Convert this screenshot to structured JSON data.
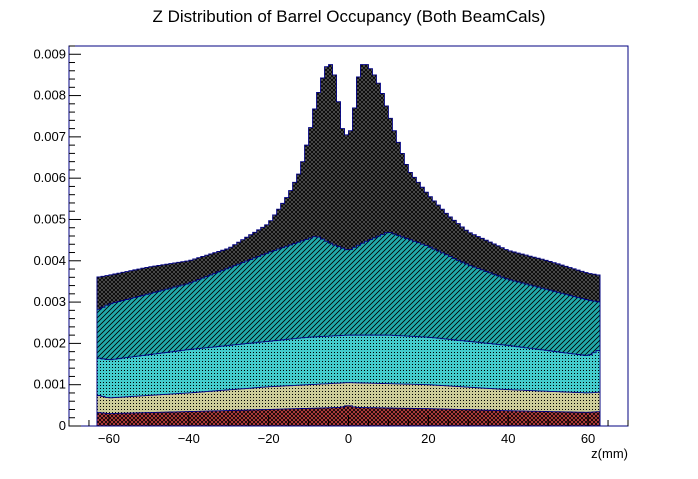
{
  "chart_data": {
    "type": "area",
    "title": "Z Distribution of Barrel Occupancy (Both BeamCals)",
    "xlabel": "z(mm)",
    "ylabel": "",
    "xlim": [
      -70,
      70
    ],
    "ylim": [
      0,
      0.0092
    ],
    "x_range_data": [
      -63,
      63
    ],
    "x_ticks": [
      -60,
      -40,
      -20,
      0,
      20,
      40,
      60
    ],
    "x_tick_labels": [
      "−60",
      "−40",
      "−20",
      "0",
      "20",
      "40",
      "60"
    ],
    "y_ticks": [
      0,
      0.001,
      0.002,
      0.003,
      0.004,
      0.005,
      0.006,
      0.007,
      0.008,
      0.009
    ],
    "y_tick_labels": [
      "0",
      "0.001",
      "0.002",
      "0.003",
      "0.004",
      "0.005",
      "0.006",
      "0.007",
      "0.008",
      "0.009"
    ],
    "grid": false,
    "legend": "none",
    "stacked": true,
    "series": [
      {
        "fill": "#cc4444",
        "hatch": "cross",
        "stroke": "#000080",
        "points": [
          [
            -63,
            0.00033
          ],
          [
            -60,
            0.0003
          ],
          [
            -40,
            0.00035
          ],
          [
            -20,
            0.0004
          ],
          [
            -2,
            0.00045
          ],
          [
            0,
            0.0005
          ],
          [
            2,
            0.00045
          ],
          [
            20,
            0.00042
          ],
          [
            40,
            0.00037
          ],
          [
            60,
            0.00033
          ],
          [
            63,
            0.00035
          ]
        ]
      },
      {
        "fill": "#cccc99",
        "hatch": "dots",
        "stroke": "#000080",
        "points": [
          [
            -63,
            0.00075
          ],
          [
            -60,
            0.00068
          ],
          [
            -40,
            0.0008
          ],
          [
            -20,
            0.00095
          ],
          [
            0,
            0.00105
          ],
          [
            20,
            0.001
          ],
          [
            40,
            0.00088
          ],
          [
            60,
            0.0008
          ],
          [
            63,
            0.00082
          ]
        ]
      },
      {
        "fill": "#44cccc",
        "hatch": "dots",
        "stroke": "#000080",
        "points": [
          [
            -63,
            0.00165
          ],
          [
            -60,
            0.0016
          ],
          [
            -40,
            0.00185
          ],
          [
            -20,
            0.00205
          ],
          [
            -10,
            0.00215
          ],
          [
            0,
            0.0022
          ],
          [
            10,
            0.0022
          ],
          [
            20,
            0.00215
          ],
          [
            40,
            0.00195
          ],
          [
            60,
            0.0017
          ],
          [
            63,
            0.00185
          ]
        ]
      },
      {
        "fill": "#22aaaa",
        "hatch": "diag",
        "stroke": "#000080",
        "points": [
          [
            -63,
            0.0028
          ],
          [
            -60,
            0.00295
          ],
          [
            -40,
            0.00345
          ],
          [
            -20,
            0.0042
          ],
          [
            -8,
            0.0046
          ],
          [
            -4,
            0.0044
          ],
          [
            0,
            0.00425
          ],
          [
            4,
            0.00445
          ],
          [
            10,
            0.0047
          ],
          [
            20,
            0.00435
          ],
          [
            30,
            0.0039
          ],
          [
            40,
            0.00355
          ],
          [
            50,
            0.0033
          ],
          [
            60,
            0.00305
          ],
          [
            63,
            0.003
          ]
        ]
      },
      {
        "fill": "#555555",
        "hatch": "cross",
        "stroke": "#000080",
        "points": [
          [
            -63,
            0.0036
          ],
          [
            -60,
            0.00365
          ],
          [
            -50,
            0.00385
          ],
          [
            -40,
            0.004
          ],
          [
            -30,
            0.0043
          ],
          [
            -25,
            0.0046
          ],
          [
            -20,
            0.0049
          ],
          [
            -15,
            0.0056
          ],
          [
            -12,
            0.0062
          ],
          [
            -10,
            0.007
          ],
          [
            -8,
            0.0079
          ],
          [
            -6,
            0.0086
          ],
          [
            -5,
            0.0088
          ],
          [
            -4,
            0.0087
          ],
          [
            -3,
            0.0083
          ],
          [
            -2,
            0.0074
          ],
          [
            -1,
            0.007
          ],
          [
            0,
            0.0071
          ],
          [
            1,
            0.0072
          ],
          [
            2,
            0.0082
          ],
          [
            3,
            0.0087
          ],
          [
            4,
            0.0088
          ],
          [
            6,
            0.0086
          ],
          [
            8,
            0.0082
          ],
          [
            10,
            0.0076
          ],
          [
            12,
            0.007
          ],
          [
            15,
            0.0062
          ],
          [
            20,
            0.0056
          ],
          [
            25,
            0.0051
          ],
          [
            30,
            0.0047
          ],
          [
            40,
            0.00425
          ],
          [
            50,
            0.004
          ],
          [
            60,
            0.0037
          ],
          [
            63,
            0.00365
          ]
        ]
      }
    ]
  }
}
